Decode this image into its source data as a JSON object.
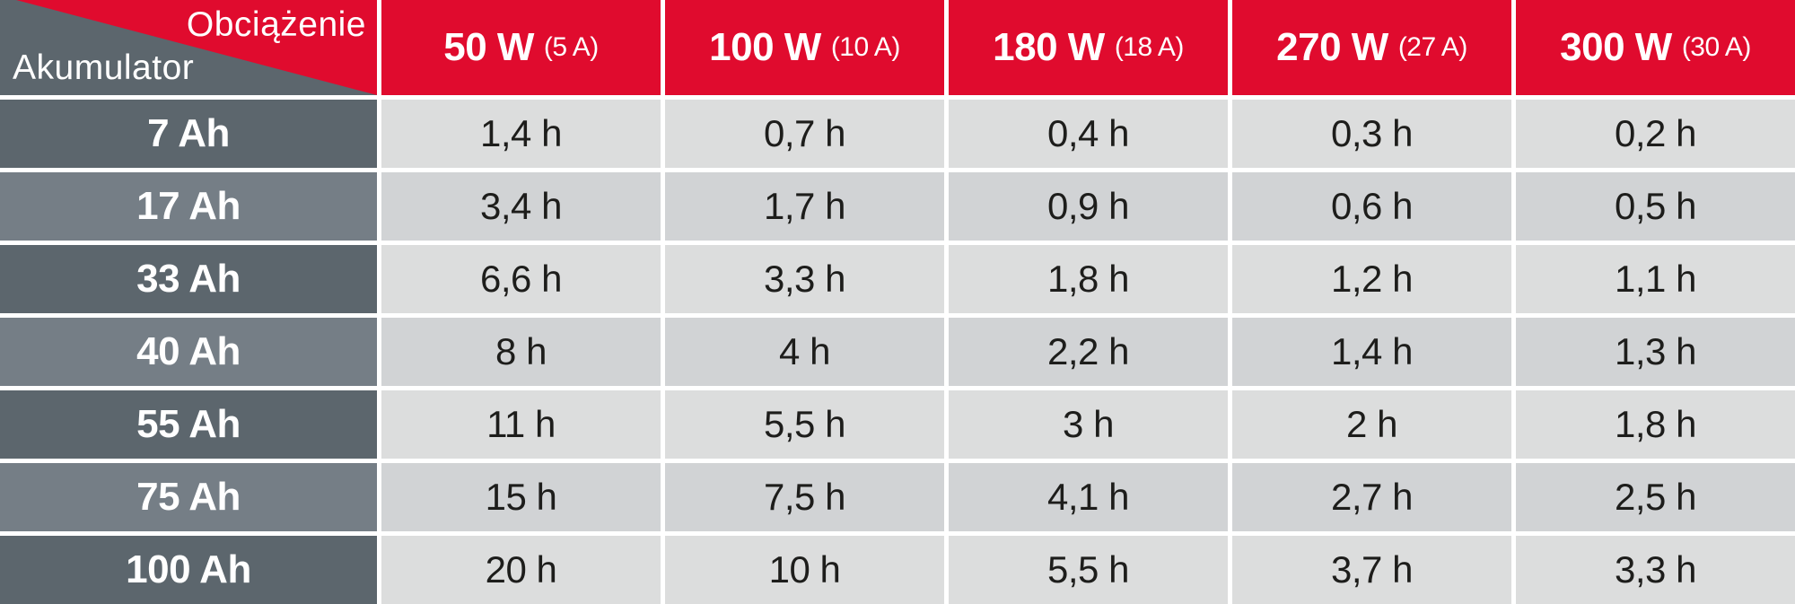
{
  "colors": {
    "accent_red": "#e00b2e",
    "slate_dark": "#5c666d",
    "slate_light": "#757e86",
    "cell_light": "#dcdddd",
    "cell_dark": "#d1d3d5",
    "gap_white": "#ffffff",
    "value_text": "#1d1d1b",
    "header_text": "#ffffff"
  },
  "table": {
    "corner": {
      "load_label": "Obciążenie",
      "battery_label": "Akumulator"
    },
    "columns": [
      {
        "power": "50 W",
        "amps": "(5 A)"
      },
      {
        "power": "100 W",
        "amps": "(10 A)"
      },
      {
        "power": "180 W",
        "amps": "(18 A)"
      },
      {
        "power": "270 W",
        "amps": "(27 A)"
      },
      {
        "power": "300 W",
        "amps": "(30 A)"
      }
    ],
    "rows": [
      {
        "battery": "7 Ah",
        "values": [
          "1,4 h",
          "0,7 h",
          "0,4 h",
          "0,3 h",
          "0,2 h"
        ]
      },
      {
        "battery": "17 Ah",
        "values": [
          "3,4 h",
          "1,7 h",
          "0,9 h",
          "0,6 h",
          "0,5 h"
        ]
      },
      {
        "battery": "33 Ah",
        "values": [
          "6,6 h",
          "3,3 h",
          "1,8 h",
          "1,2 h",
          "1,1 h"
        ]
      },
      {
        "battery": "40 Ah",
        "values": [
          "8 h",
          "4 h",
          "2,2 h",
          "1,4 h",
          "1,3 h"
        ]
      },
      {
        "battery": "55 Ah",
        "values": [
          "11 h",
          "5,5 h",
          "3 h",
          "2 h",
          "1,8 h"
        ]
      },
      {
        "battery": "75 Ah",
        "values": [
          "15 h",
          "7,5 h",
          "4,1 h",
          "2,7 h",
          "2,5 h"
        ]
      },
      {
        "battery": "100 Ah",
        "values": [
          "20 h",
          "10 h",
          "5,5 h",
          "3,7 h",
          "3,3 h"
        ]
      }
    ]
  },
  "chart_data": {
    "type": "table",
    "title": "",
    "column_axis_label": "Obciążenie",
    "row_axis_label": "Akumulator",
    "columns": [
      "50 W (5 A)",
      "100 W (10 A)",
      "180 W (18 A)",
      "270 W (27 A)",
      "300 W (30 A)"
    ],
    "rows": [
      "7 Ah",
      "17 Ah",
      "33 Ah",
      "40 Ah",
      "55 Ah",
      "75 Ah",
      "100 Ah"
    ],
    "values_unit": "h",
    "values_hours": [
      [
        1.4,
        0.7,
        0.4,
        0.3,
        0.2
      ],
      [
        3.4,
        1.7,
        0.9,
        0.6,
        0.5
      ],
      [
        6.6,
        3.3,
        1.8,
        1.2,
        1.1
      ],
      [
        8,
        4,
        2.2,
        1.4,
        1.3
      ],
      [
        11,
        5.5,
        3,
        2,
        1.8
      ],
      [
        15,
        7.5,
        4.1,
        2.7,
        2.5
      ],
      [
        20,
        10,
        5.5,
        3.7,
        3.3
      ]
    ]
  }
}
